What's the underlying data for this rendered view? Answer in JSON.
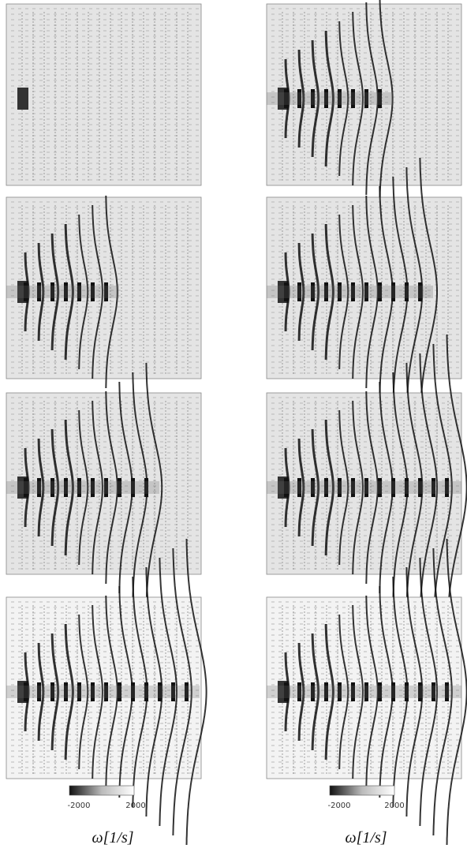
{
  "colorbars": [
    {
      "ticks": [
        -2000,
        2000
      ],
      "label": "ω[1/s]"
    },
    {
      "ticks": [
        -2000,
        2000
      ],
      "label": "ω[1/s]"
    }
  ]
}
